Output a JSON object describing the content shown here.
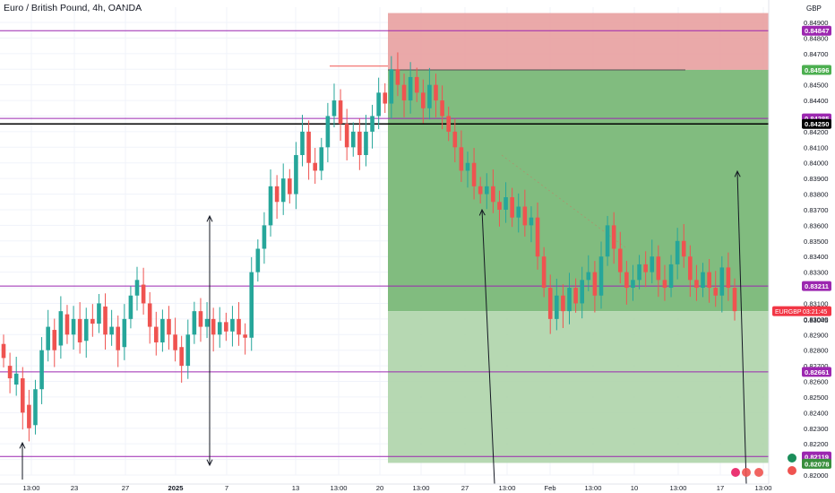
{
  "header": {
    "symbol_title": "Euro / British Pound, 4h, OANDA"
  },
  "chart_data": {
    "type": "candlestick",
    "title": "Euro / British Pound, 4h, OANDA",
    "currency_label": "GBP",
    "ylim": [
      0.82,
      0.85
    ],
    "y_ticks": [
      "0.84900",
      "0.84800",
      "0.84700",
      "0.84600",
      "0.84500",
      "0.84400",
      "0.84300",
      "0.84200",
      "0.84100",
      "0.84000",
      "0.83900",
      "0.83800",
      "0.83700",
      "0.83600",
      "0.83500",
      "0.83400",
      "0.83300",
      "0.83200",
      "0.83100",
      "0.83000",
      "0.82900",
      "0.82800",
      "0.82700",
      "0.82600",
      "0.82500",
      "0.82400",
      "0.82300",
      "0.82200",
      "0.82100",
      "0.82000"
    ],
    "x_ticks": [
      "13:00",
      "23",
      "27",
      "2025",
      "7",
      "13",
      "13:00",
      "20",
      "13:00",
      "27",
      "13:00",
      "Feb",
      "13:00",
      "10",
      "13:00",
      "17",
      "13:00"
    ],
    "horizontal_levels": [
      {
        "value": 0.84847,
        "label": "0.84847",
        "color": "#9c27b0"
      },
      {
        "value": 0.84285,
        "label": "0.84285",
        "color": "#9c27b0"
      },
      {
        "value": 0.8425,
        "label": "0.84250",
        "color": "#000000"
      },
      {
        "value": 0.83211,
        "label": "0.83211",
        "color": "#9c27b0"
      },
      {
        "value": 0.82661,
        "label": "0.82661",
        "color": "#9c27b0"
      },
      {
        "value": 0.82119,
        "label": "0.82119",
        "color": "#9c27b0"
      }
    ],
    "position": {
      "entry": 0.84596,
      "entry_label": "0.84596",
      "stop": 0.8496,
      "target": 0.82078,
      "target_label": "0.82078",
      "partial": 0.8305
    },
    "last_price": {
      "symbol": "EURGBP",
      "price": "0.83045",
      "countdown": "03:21:45",
      "value": 0.8305
    },
    "colors": {
      "up": "#26a69a",
      "down": "#ef5350",
      "level": "#9c27b0",
      "stop_zone": "#e8a0a0",
      "profit_zone": "#7ab878",
      "target_zone": "#aed4aa",
      "price_tag": "#f23645",
      "entry_tag": "#4caf50"
    },
    "ohlc_segments_note": "",
    "price_path": [
      [
        0.8284,
        0.8275
      ],
      [
        0.827,
        0.8262
      ],
      [
        0.8258,
        0.8265
      ],
      [
        0.8262,
        0.824
      ],
      [
        0.8245,
        0.823
      ],
      [
        0.8232,
        0.8255
      ],
      [
        0.8255,
        0.828
      ],
      [
        0.828,
        0.8295
      ],
      [
        0.8293,
        0.828
      ],
      [
        0.8283,
        0.8305
      ],
      [
        0.8303,
        0.829
      ],
      [
        0.829,
        0.83
      ],
      [
        0.83,
        0.8285
      ],
      [
        0.8286,
        0.83
      ],
      [
        0.83,
        0.8297
      ],
      [
        0.8297,
        0.831
      ],
      [
        0.8308,
        0.829
      ],
      [
        0.829,
        0.8295
      ],
      [
        0.8295,
        0.828
      ],
      [
        0.8282,
        0.83
      ],
      [
        0.83,
        0.8315
      ],
      [
        0.8315,
        0.8325
      ],
      [
        0.8322,
        0.831
      ],
      [
        0.831,
        0.8295
      ],
      [
        0.8295,
        0.8285
      ],
      [
        0.8285,
        0.83
      ],
      [
        0.83,
        0.829
      ],
      [
        0.829,
        0.828
      ],
      [
        0.8282,
        0.827
      ],
      [
        0.827,
        0.829
      ],
      [
        0.829,
        0.8305
      ],
      [
        0.8305,
        0.8295
      ],
      [
        0.8295,
        0.83
      ],
      [
        0.83,
        0.829
      ],
      [
        0.829,
        0.8298
      ],
      [
        0.8298,
        0.8292
      ],
      [
        0.8292,
        0.83
      ],
      [
        0.83,
        0.829
      ],
      [
        0.829,
        0.8288
      ],
      [
        0.8288,
        0.833
      ],
      [
        0.833,
        0.8345
      ],
      [
        0.8345,
        0.836
      ],
      [
        0.836,
        0.8385
      ],
      [
        0.8385,
        0.8375
      ],
      [
        0.8375,
        0.839
      ],
      [
        0.839,
        0.838
      ],
      [
        0.838,
        0.8405
      ],
      [
        0.8405,
        0.842
      ],
      [
        0.842,
        0.84
      ],
      [
        0.84,
        0.8395
      ],
      [
        0.8395,
        0.841
      ],
      [
        0.841,
        0.843
      ],
      [
        0.843,
        0.844
      ],
      [
        0.844,
        0.8425
      ],
      [
        0.8425,
        0.841
      ],
      [
        0.841,
        0.842
      ],
      [
        0.842,
        0.8405
      ],
      [
        0.8405,
        0.842
      ],
      [
        0.842,
        0.843
      ],
      [
        0.843,
        0.8445
      ],
      [
        0.8445,
        0.8438
      ],
      [
        0.8438,
        0.846
      ],
      [
        0.846,
        0.845
      ],
      [
        0.845,
        0.844
      ],
      [
        0.844,
        0.8455
      ],
      [
        0.8455,
        0.8445
      ],
      [
        0.8445,
        0.8435
      ],
      [
        0.8435,
        0.845
      ],
      [
        0.845,
        0.844
      ],
      [
        0.844,
        0.843
      ],
      [
        0.843,
        0.842
      ],
      [
        0.842,
        0.841
      ],
      [
        0.841,
        0.8395
      ],
      [
        0.8395,
        0.84
      ],
      [
        0.84,
        0.8385
      ],
      [
        0.8385,
        0.838
      ],
      [
        0.838,
        0.8385
      ],
      [
        0.8385,
        0.8375
      ],
      [
        0.8375,
        0.837
      ],
      [
        0.837,
        0.8378
      ],
      [
        0.8378,
        0.8365
      ],
      [
        0.8365,
        0.8372
      ],
      [
        0.8372,
        0.836
      ],
      [
        0.836,
        0.8365
      ],
      [
        0.8365,
        0.834
      ],
      [
        0.834,
        0.832
      ],
      [
        0.832,
        0.83
      ],
      [
        0.83,
        0.8315
      ],
      [
        0.8315,
        0.8305
      ],
      [
        0.8305,
        0.832
      ],
      [
        0.832,
        0.831
      ],
      [
        0.831,
        0.8325
      ],
      [
        0.8325,
        0.833
      ],
      [
        0.833,
        0.8315
      ],
      [
        0.8315,
        0.834
      ],
      [
        0.834,
        0.836
      ],
      [
        0.836,
        0.8345
      ],
      [
        0.8345,
        0.833
      ],
      [
        0.833,
        0.832
      ],
      [
        0.832,
        0.8325
      ],
      [
        0.8325,
        0.8335
      ],
      [
        0.8335,
        0.833
      ],
      [
        0.833,
        0.834
      ],
      [
        0.834,
        0.8325
      ],
      [
        0.8325,
        0.832
      ],
      [
        0.832,
        0.8335
      ],
      [
        0.8335,
        0.835
      ],
      [
        0.835,
        0.834
      ],
      [
        0.834,
        0.8325
      ],
      [
        0.8325,
        0.832
      ],
      [
        0.832,
        0.833
      ],
      [
        0.833,
        0.832
      ],
      [
        0.832,
        0.8315
      ],
      [
        0.8315,
        0.8333
      ],
      [
        0.8333,
        0.832
      ],
      [
        0.832,
        0.8305
      ]
    ]
  }
}
